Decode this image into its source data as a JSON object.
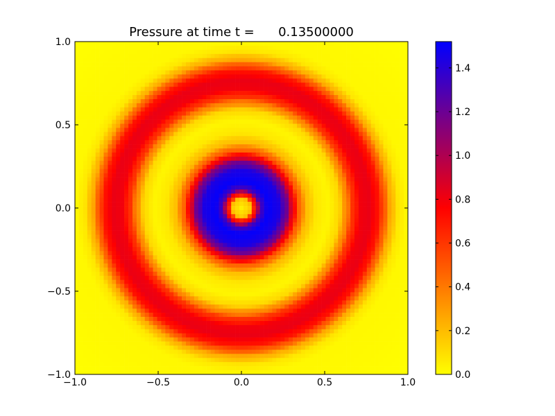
{
  "chart_data": {
    "type": "heatmap",
    "title": "Pressure at time t =      0.13500000",
    "xlabel": "",
    "ylabel": "",
    "xlim": [
      -1.0,
      1.0
    ],
    "ylim": [
      -1.0,
      1.0
    ],
    "x_ticks": [
      "−1.0",
      "−0.5",
      "0.0",
      "0.5",
      "1.0"
    ],
    "x_tick_values": [
      -1.0,
      -0.5,
      0.0,
      0.5,
      1.0
    ],
    "y_ticks": [
      "−1.0",
      "−0.5",
      "0.0",
      "0.5",
      "1.0"
    ],
    "y_tick_values": [
      -1.0,
      -0.5,
      0.0,
      0.5,
      1.0
    ],
    "grid_resolution": 81,
    "field": {
      "description": "radially symmetric pressure field p(r)",
      "radial_profile": [
        {
          "r": 0.0,
          "p": 0.05
        },
        {
          "r": 0.05,
          "p": 0.15
        },
        {
          "r": 0.08,
          "p": 0.7
        },
        {
          "r": 0.12,
          "p": 1.35
        },
        {
          "r": 0.16,
          "p": 1.5
        },
        {
          "r": 0.22,
          "p": 1.45
        },
        {
          "r": 0.27,
          "p": 1.2
        },
        {
          "r": 0.31,
          "p": 0.8
        },
        {
          "r": 0.35,
          "p": 0.45
        },
        {
          "r": 0.4,
          "p": 0.18
        },
        {
          "r": 0.46,
          "p": 0.06
        },
        {
          "r": 0.52,
          "p": 0.03
        },
        {
          "r": 0.58,
          "p": 0.1
        },
        {
          "r": 0.63,
          "p": 0.35
        },
        {
          "r": 0.67,
          "p": 0.62
        },
        {
          "r": 0.72,
          "p": 0.8
        },
        {
          "r": 0.77,
          "p": 0.82
        },
        {
          "r": 0.82,
          "p": 0.72
        },
        {
          "r": 0.86,
          "p": 0.48
        },
        {
          "r": 0.9,
          "p": 0.22
        },
        {
          "r": 0.95,
          "p": 0.06
        },
        {
          "r": 1.0,
          "p": 0.02
        },
        {
          "r": 1.5,
          "p": 0.0
        }
      ]
    },
    "colorbar": {
      "min": 0.0,
      "max": 1.52,
      "tick_values": [
        0.0,
        0.2,
        0.4,
        0.6,
        0.8,
        1.0,
        1.2,
        1.4
      ],
      "tick_labels": [
        "0.0",
        "0.2",
        "0.4",
        "0.6",
        "0.8",
        "1.0",
        "1.2",
        "1.4"
      ],
      "colormap": [
        {
          "v": 0.0,
          "color": "#ffff00"
        },
        {
          "v": 0.5,
          "color": "#ff0000"
        },
        {
          "v": 1.0,
          "color": "#0000ff"
        }
      ]
    },
    "grid": false,
    "legend": "none"
  }
}
